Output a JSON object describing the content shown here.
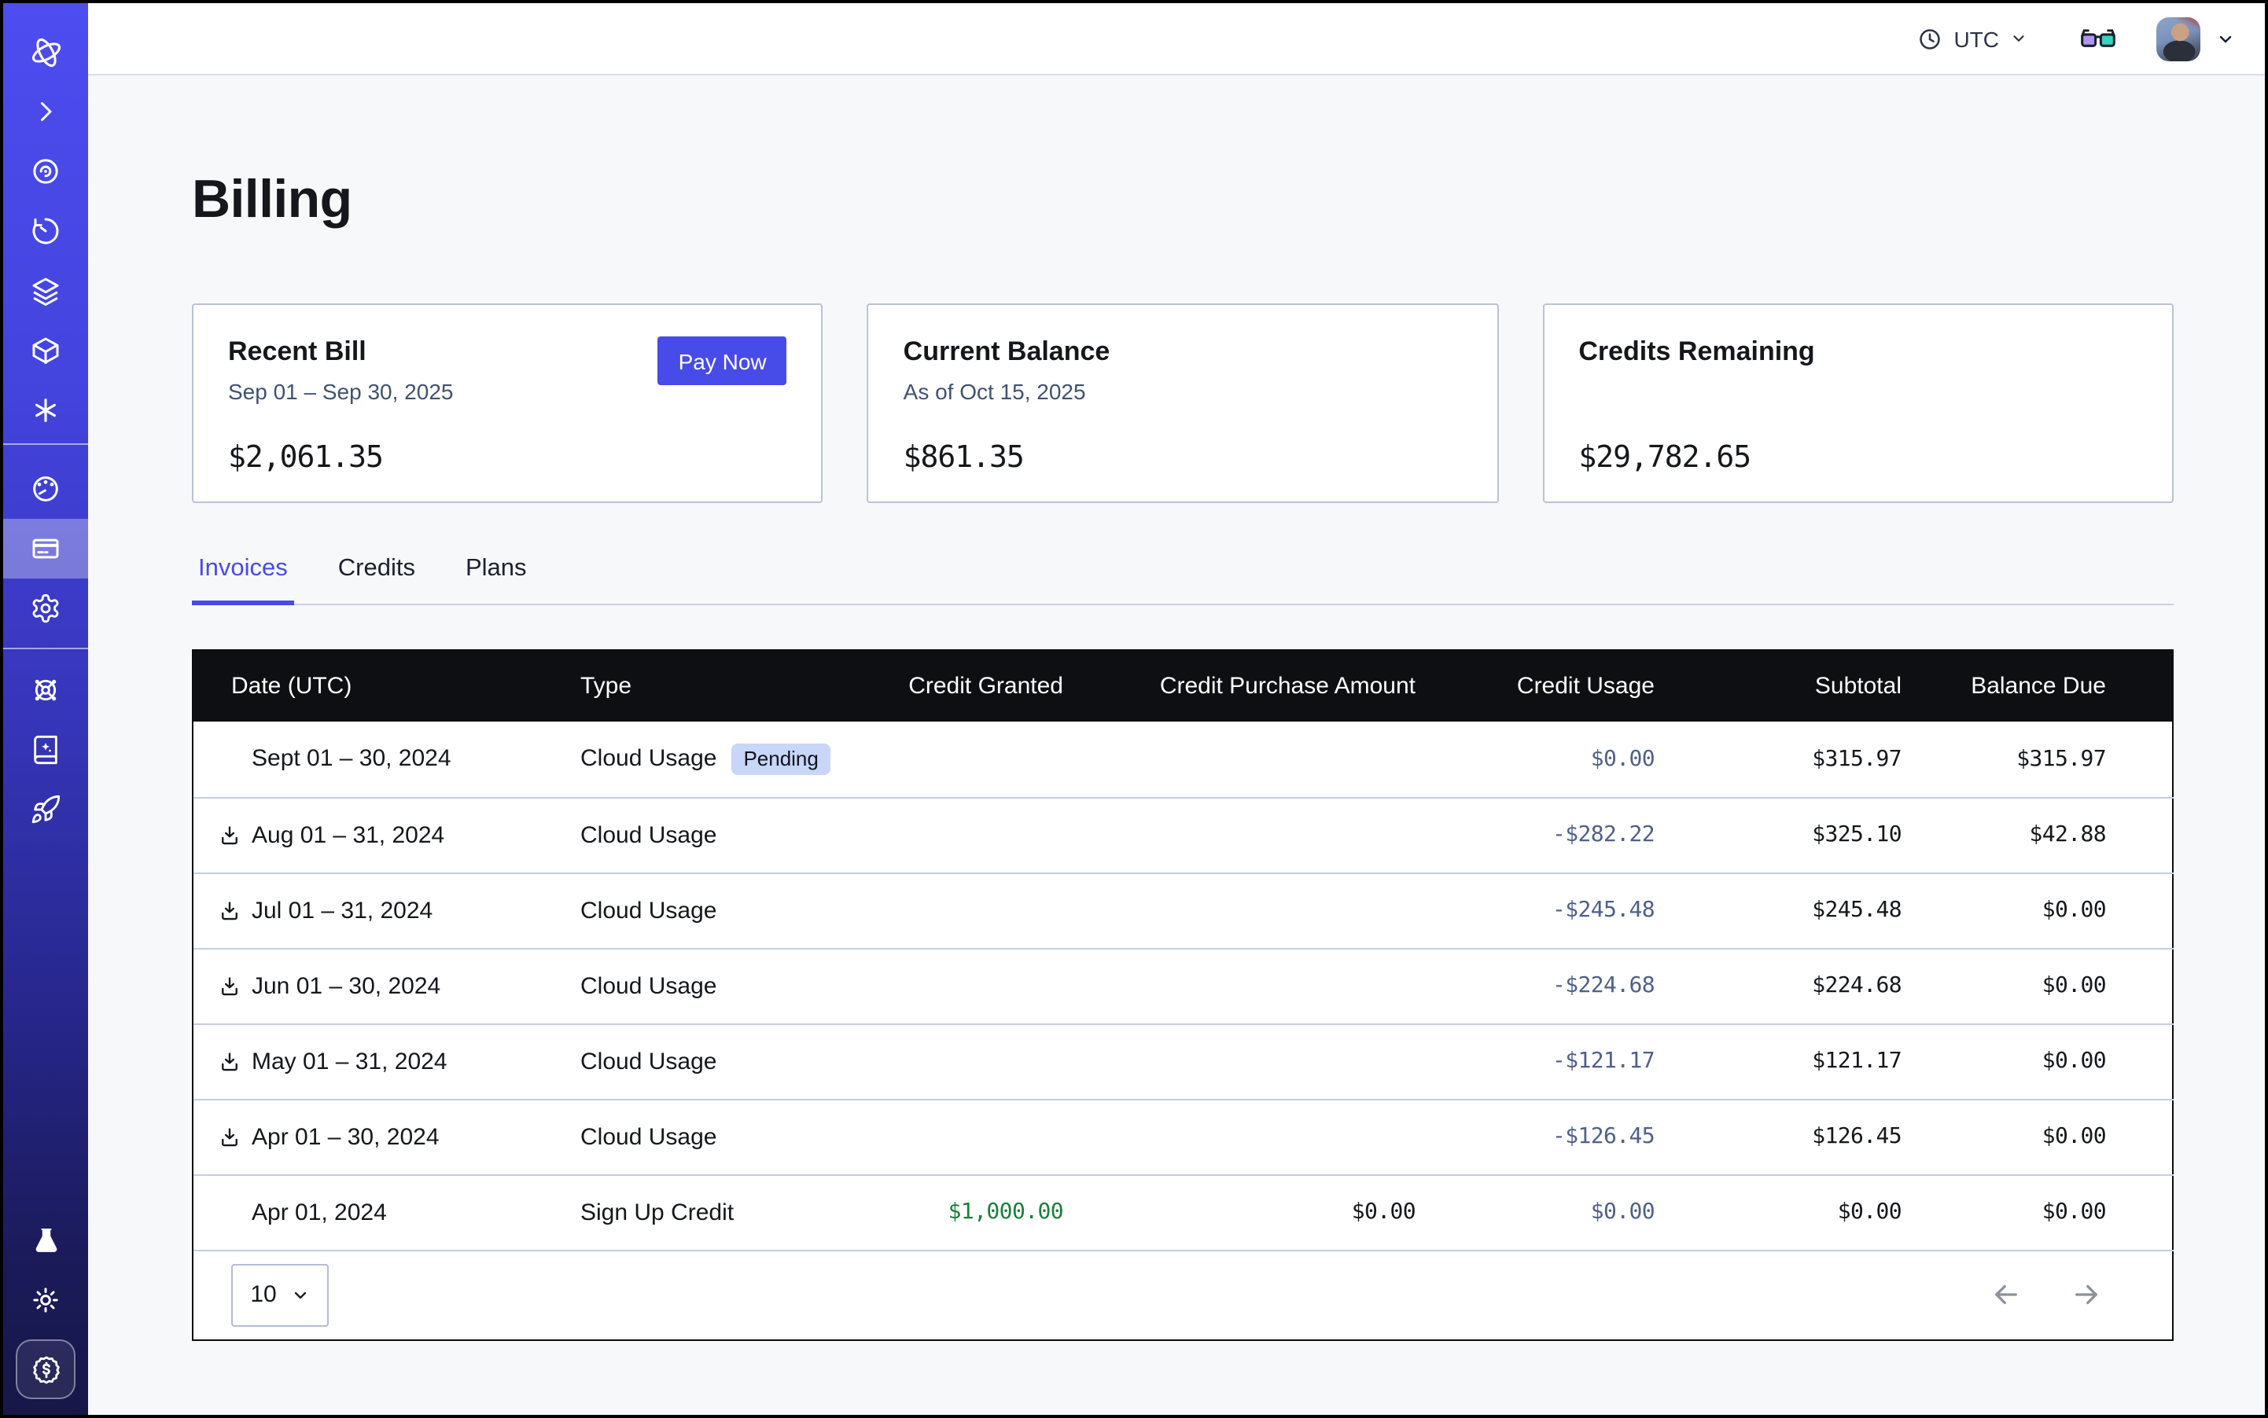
{
  "topbar": {
    "timezone_label": "UTC",
    "icons": [
      "clock-icon",
      "chevron-down-icon",
      "glasses-icon",
      "user-avatar",
      "chevron-down-icon"
    ]
  },
  "sidebar": {
    "active_item": "billing",
    "icons_top": [
      "logo",
      "chevron-right",
      "eye-spiral",
      "history",
      "layers",
      "cube",
      "asterisk"
    ],
    "icons_middle": [
      "gauge",
      "credit-card",
      "gear"
    ],
    "icons_lower": [
      "wheel",
      "book-sparkle",
      "rocket"
    ],
    "icons_bottom": [
      "flask",
      "sun",
      "dollar-seal"
    ]
  },
  "page": {
    "title": "Billing"
  },
  "summary_cards": [
    {
      "title": "Recent Bill",
      "subtitle": "Sep 01 – Sep 30, 2025",
      "amount": "$2,061.35",
      "action_label": "Pay Now"
    },
    {
      "title": "Current Balance",
      "subtitle": "As of Oct 15, 2025",
      "amount": "$861.35"
    },
    {
      "title": "Credits Remaining",
      "subtitle": "",
      "amount": "$29,782.65"
    }
  ],
  "tabs": {
    "items": [
      {
        "label": "Invoices",
        "active": true
      },
      {
        "label": "Credits",
        "active": false
      },
      {
        "label": "Plans",
        "active": false
      }
    ]
  },
  "invoices_table": {
    "columns": [
      "Date (UTC)",
      "Type",
      "Credit Granted",
      "Credit Purchase Amount",
      "Credit Usage",
      "Subtotal",
      "Balance Due"
    ],
    "rows": [
      {
        "date": "Sept 01 – 30, 2024",
        "has_download": false,
        "type": "Cloud Usage",
        "badge": "Pending",
        "credit_granted": "",
        "credit_purchase_amount": "",
        "credit_usage": "$0.00",
        "subtotal": "$315.97",
        "balance_due": "$315.97"
      },
      {
        "date": "Aug 01 – 31, 2024",
        "has_download": true,
        "type": "Cloud Usage",
        "badge": "",
        "credit_granted": "",
        "credit_purchase_amount": "",
        "credit_usage": "-$282.22",
        "subtotal": "$325.10",
        "balance_due": "$42.88"
      },
      {
        "date": "Jul 01 – 31, 2024",
        "has_download": true,
        "type": "Cloud Usage",
        "badge": "",
        "credit_granted": "",
        "credit_purchase_amount": "",
        "credit_usage": "-$245.48",
        "subtotal": "$245.48",
        "balance_due": "$0.00"
      },
      {
        "date": "Jun 01 – 30, 2024",
        "has_download": true,
        "type": "Cloud Usage",
        "badge": "",
        "credit_granted": "",
        "credit_purchase_amount": "",
        "credit_usage": "-$224.68",
        "subtotal": "$224.68",
        "balance_due": "$0.00"
      },
      {
        "date": "May 01 – 31, 2024",
        "has_download": true,
        "type": "Cloud Usage",
        "badge": "",
        "credit_granted": "",
        "credit_purchase_amount": "",
        "credit_usage": "-$121.17",
        "subtotal": "$121.17",
        "balance_due": "$0.00"
      },
      {
        "date": "Apr 01 – 30, 2024",
        "has_download": true,
        "type": "Cloud Usage",
        "badge": "",
        "credit_granted": "",
        "credit_purchase_amount": "",
        "credit_usage": "-$126.45",
        "subtotal": "$126.45",
        "balance_due": "$0.00"
      },
      {
        "date": "Apr 01, 2024",
        "has_download": false,
        "type": "Sign Up Credit",
        "badge": "",
        "credit_granted": "$1,000.00",
        "credit_purchase_amount": "$0.00",
        "credit_usage": "$0.00",
        "subtotal": "$0.00",
        "balance_due": "$0.00"
      }
    ],
    "pagination": {
      "page_size": "10"
    }
  },
  "colors": {
    "accent": "#474be8",
    "sidebar_top": "#4d4df0",
    "sidebar_bottom": "#171748",
    "table_header_bg": "#0e0f13",
    "credit_usage_text": "#4f608a",
    "credit_granted_green": "#1a7f3c",
    "pending_badge_bg": "#c8d6f8",
    "page_bg": "#f7f8fa"
  }
}
